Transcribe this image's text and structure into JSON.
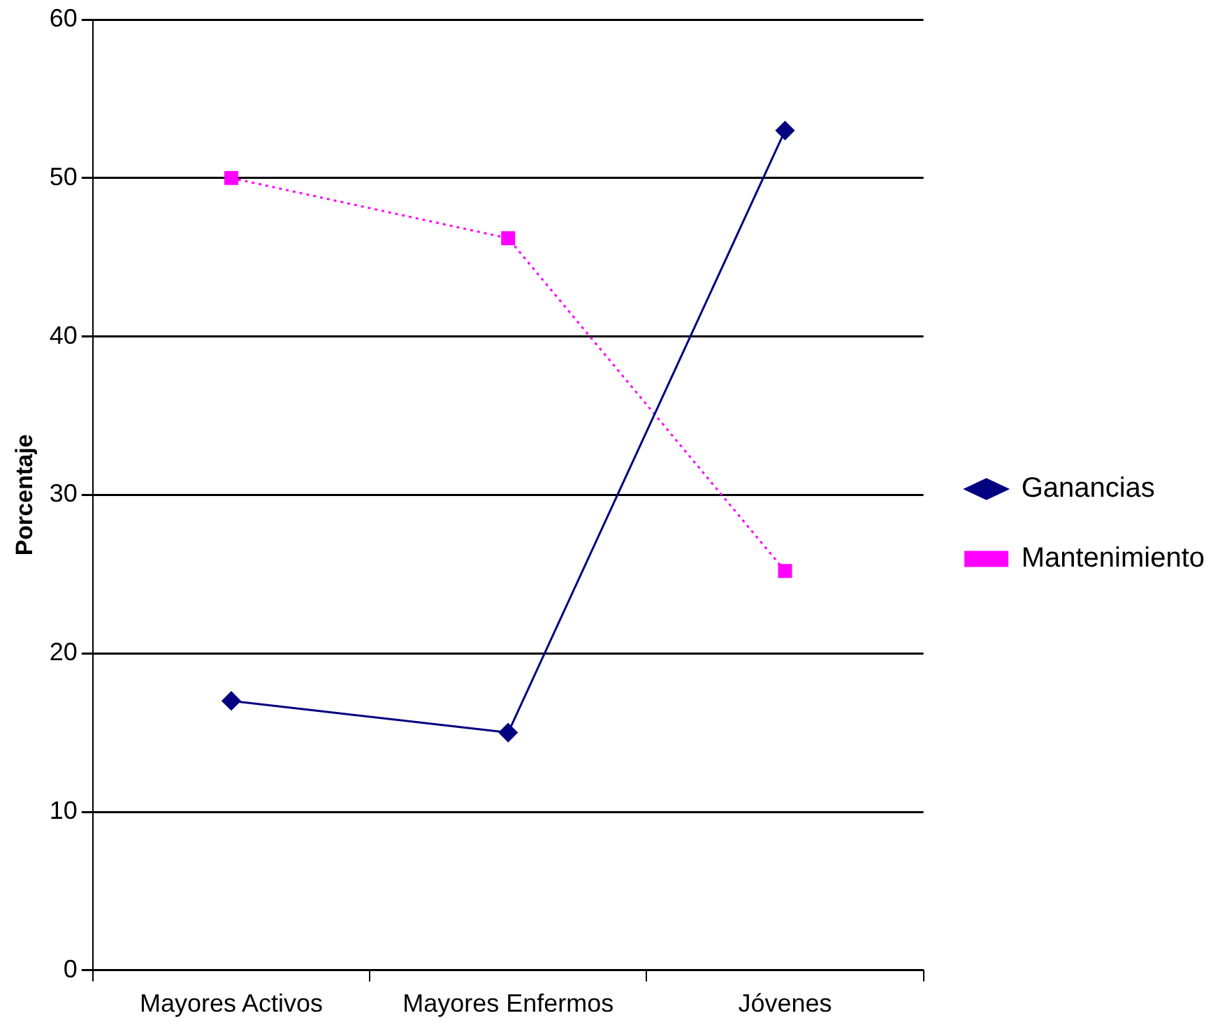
{
  "chart_data": {
    "type": "line",
    "ylabel": "Porcentaje",
    "categories": [
      "Mayores Activos",
      "Mayores Enfermos",
      "Jóvenes"
    ],
    "series": [
      {
        "name": "Ganancias",
        "color": "#000080",
        "values": [
          17,
          15,
          53
        ],
        "marker": "diamond",
        "line_style": "solid"
      },
      {
        "name": "Mantenimiento",
        "color": "#ff00ff",
        "values": [
          50,
          46.2,
          25.2
        ],
        "marker": "square",
        "line_style": "dotted"
      }
    ],
    "ylim": [
      0,
      60
    ],
    "yticks": [
      0,
      10,
      20,
      30,
      40,
      50,
      60
    ],
    "grid": "y",
    "legend": "right"
  }
}
